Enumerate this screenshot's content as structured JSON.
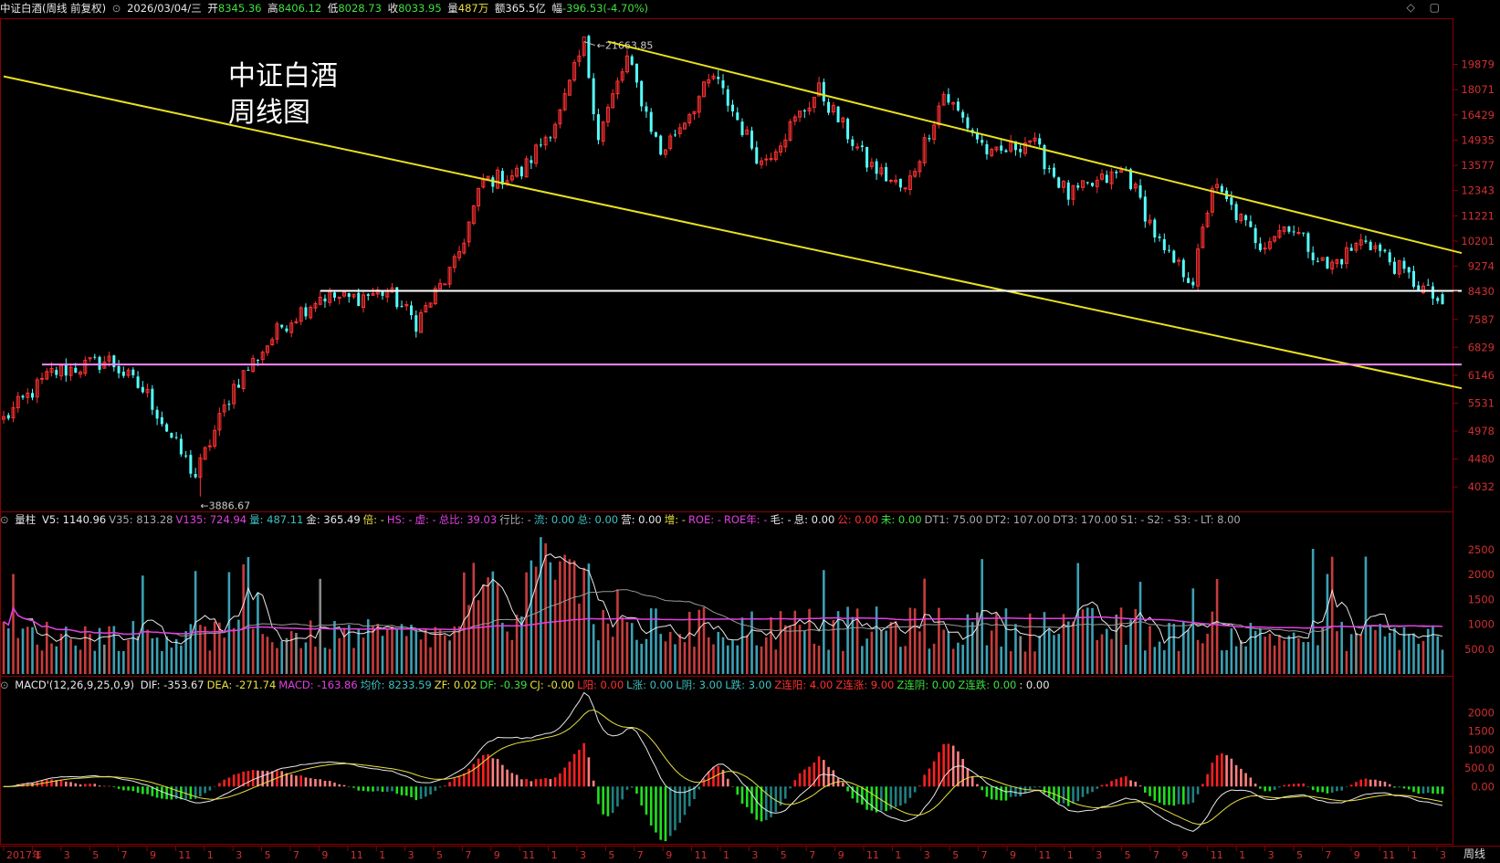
{
  "header": {
    "title": "中证白酒(周线 前复权)",
    "date": "2026/03/04/三",
    "open_label": "开",
    "open": "8345.36",
    "high_label": "高",
    "high": "8406.12",
    "low_label": "低",
    "low": "8028.73",
    "close_label": "收",
    "close": "8033.95",
    "vol_label": "量",
    "vol": "487万",
    "amount_label": "额",
    "amount": "365.5亿",
    "chg_label": "幅",
    "chg": "-396.53(-4.70%)"
  },
  "win_controls": "◇ ▢",
  "annotation": {
    "line1": "中证白酒",
    "line2": "周线图"
  },
  "price_axis": {
    "ticks": [
      "19879",
      "18071",
      "16429",
      "14935",
      "13577",
      "12343",
      "11221",
      "10201",
      "9274",
      "8430",
      "7587",
      "6829",
      "6146",
      "5531",
      "4978",
      "4480",
      "4032"
    ],
    "max_label": "21663.85",
    "min_label": "3886.67"
  },
  "vol_header": {
    "name": "量柱",
    "items": [
      {
        "t": "V5: 1140.96",
        "c": "#e8e8e8"
      },
      {
        "t": "V35: 813.28",
        "c": "#aaaaaa"
      },
      {
        "t": "V135: 724.94",
        "c": "#e040e0"
      },
      {
        "t": "量: 487.11",
        "c": "#40c0c0"
      },
      {
        "t": "金: 365.49",
        "c": "#e8e8e8"
      },
      {
        "t": "倍: -",
        "c": "#e8e040"
      },
      {
        "t": "HS: -",
        "c": "#e040e0"
      },
      {
        "t": "虚: -",
        "c": "#e040e0"
      },
      {
        "t": "总比: 39.03",
        "c": "#e040e0"
      },
      {
        "t": "行比: -",
        "c": "#aaaaaa"
      },
      {
        "t": "流: 0.00",
        "c": "#40c0c0"
      },
      {
        "t": "总: 0.00",
        "c": "#40c0c0"
      },
      {
        "t": "营: 0.00",
        "c": "#e8e8e8"
      },
      {
        "t": "增: -",
        "c": "#e8e040"
      },
      {
        "t": "ROE: -",
        "c": "#e040e0"
      },
      {
        "t": "ROE年: -",
        "c": "#e040e0"
      },
      {
        "t": "毛: -",
        "c": "#e8e8e8"
      },
      {
        "t": "息: 0.00",
        "c": "#e8e8e8"
      },
      {
        "t": "公: 0.00",
        "c": "#ff3030"
      },
      {
        "t": "未: 0.00",
        "c": "#40e040"
      },
      {
        "t": "DT1: 75.00",
        "c": "#aaaaaa"
      },
      {
        "t": "DT2: 107.00",
        "c": "#aaaaaa"
      },
      {
        "t": "DT3: 170.00",
        "c": "#aaaaaa"
      },
      {
        "t": "S1: -",
        "c": "#aaaaaa"
      },
      {
        "t": "S2: -",
        "c": "#aaaaaa"
      },
      {
        "t": "S3: -",
        "c": "#aaaaaa"
      },
      {
        "t": "LT: 8.00",
        "c": "#aaaaaa"
      }
    ],
    "ticks": [
      "2500",
      "2000",
      "1500",
      "1000",
      "500.0"
    ]
  },
  "macd_header": {
    "name": "MACD'(12,26,9,25,0,9)",
    "items": [
      {
        "t": "DIF: -353.67",
        "c": "#e8e8e8"
      },
      {
        "t": "DEA: -271.74",
        "c": "#e8e040"
      },
      {
        "t": "MACD: -163.86",
        "c": "#e040e0"
      },
      {
        "t": "均价: 8233.59",
        "c": "#40c0c0"
      },
      {
        "t": "ZF: 0.02",
        "c": "#e8e040"
      },
      {
        "t": "DF: -0.39",
        "c": "#40e040"
      },
      {
        "t": "CJ: -0.00",
        "c": "#e8e040"
      },
      {
        "t": "L阳: 0.00",
        "c": "#ff3030"
      },
      {
        "t": "L涨: 0.00",
        "c": "#40c0c0"
      },
      {
        "t": "L阴: 3.00",
        "c": "#40c0c0"
      },
      {
        "t": "L跌: 3.00",
        "c": "#40c0c0"
      },
      {
        "t": "Z连阳: 4.00",
        "c": "#ff3030"
      },
      {
        "t": "Z连涨: 9.00",
        "c": "#ff3030"
      },
      {
        "t": "Z连阴: 0.00",
        "c": "#40e040"
      },
      {
        "t": "Z连跌: 0.00",
        "c": "#40e040"
      },
      {
        "t": ": 0.00",
        "c": "#e8e8e8"
      }
    ],
    "ticks": [
      "2000",
      "1500",
      "1000",
      "500.0",
      "0.00"
    ]
  },
  "time_axis": {
    "labels": [
      "2017年",
      "1",
      "3",
      "5",
      "7",
      "9",
      "11",
      "1",
      "3",
      "5",
      "7",
      "9",
      "11",
      "1",
      "3",
      "5",
      "7",
      "9",
      "11",
      "1",
      "3",
      "5",
      "7",
      "9",
      "11",
      "1",
      "3",
      "5",
      "7",
      "9",
      "11",
      "1",
      "3",
      "5",
      "7",
      "9",
      "11",
      "1",
      "3",
      "5",
      "7",
      "9",
      "11",
      "1",
      "3",
      "5",
      "7",
      "9",
      "11",
      "1",
      "3"
    ],
    "period": "周线"
  },
  "chart_data": {
    "type": "candlestick",
    "title": "中证白酒(周线 前复权)",
    "period": "weekly",
    "x_range": [
      "2017-01",
      "2026-03"
    ],
    "y_scale": "log",
    "ylim": [
      3700,
      23500
    ],
    "close_anchors": [
      {
        "i": 0,
        "v": 5200
      },
      {
        "i": 10,
        "v": 6200
      },
      {
        "i": 22,
        "v": 6500
      },
      {
        "i": 30,
        "v": 5700
      },
      {
        "i": 36,
        "v": 4700
      },
      {
        "i": 40,
        "v": 4200
      },
      {
        "i": 48,
        "v": 5900
      },
      {
        "i": 58,
        "v": 7400
      },
      {
        "i": 66,
        "v": 8300
      },
      {
        "i": 72,
        "v": 8200
      },
      {
        "i": 80,
        "v": 8450
      },
      {
        "i": 86,
        "v": 7500
      },
      {
        "i": 94,
        "v": 9300
      },
      {
        "i": 100,
        "v": 12800
      },
      {
        "i": 108,
        "v": 13200
      },
      {
        "i": 116,
        "v": 16500
      },
      {
        "i": 121,
        "v": 21500
      },
      {
        "i": 124,
        "v": 15200
      },
      {
        "i": 130,
        "v": 20300
      },
      {
        "i": 137,
        "v": 14200
      },
      {
        "i": 148,
        "v": 19000
      },
      {
        "i": 158,
        "v": 13700
      },
      {
        "i": 170,
        "v": 18000
      },
      {
        "i": 180,
        "v": 13700
      },
      {
        "i": 188,
        "v": 12300
      },
      {
        "i": 196,
        "v": 17800
      },
      {
        "i": 206,
        "v": 14000
      },
      {
        "i": 214,
        "v": 15000
      },
      {
        "i": 222,
        "v": 12100
      },
      {
        "i": 234,
        "v": 13300
      },
      {
        "i": 242,
        "v": 9700
      },
      {
        "i": 248,
        "v": 8800
      },
      {
        "i": 252,
        "v": 12600
      },
      {
        "i": 262,
        "v": 10100
      },
      {
        "i": 268,
        "v": 10900
      },
      {
        "i": 276,
        "v": 9200
      },
      {
        "i": 284,
        "v": 10300
      },
      {
        "i": 292,
        "v": 9000
      },
      {
        "i": 300,
        "v": 8033.95
      }
    ],
    "max": {
      "value": 21663.85
    },
    "min": {
      "value": 3886.67
    },
    "trendlines": [
      {
        "name": "upper",
        "color": "#e8e020",
        "p1": {
          "i": 126,
          "v": 21663.85
        },
        "p2": {
          "i": 304,
          "v": 9750
        }
      },
      {
        "name": "lower",
        "color": "#e8e020",
        "p1": {
          "i": 0,
          "v": 19000
        },
        "p2": {
          "i": 304,
          "v": 5850
        }
      },
      {
        "name": "support",
        "color": "#ffffff",
        "p1": {
          "i": 66,
          "v": 8450
        },
        "p2": {
          "i": 304,
          "v": 8450
        }
      },
      {
        "name": "support2",
        "color": "#ff88ff",
        "p1": {
          "i": 8,
          "v": 6400
        },
        "p2": {
          "i": 304,
          "v": 6400
        }
      }
    ],
    "volume": {
      "ylim": [
        0,
        2900
      ]
    },
    "macd": {
      "ylim": [
        -1500,
        2500
      ]
    }
  }
}
